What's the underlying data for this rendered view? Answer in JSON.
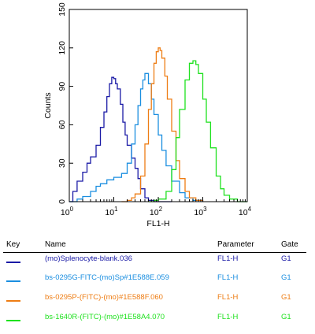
{
  "chart_data": {
    "type": "line",
    "xlabel": "FL1-H",
    "ylabel": "Counts",
    "xscale": "log",
    "xlim": [
      1,
      10000
    ],
    "ylim": [
      0,
      150
    ],
    "yticks": [
      "0",
      "30",
      "60",
      "90",
      "120",
      "150"
    ],
    "xticks": [
      {
        "base": "10",
        "exp": "0"
      },
      {
        "base": "10",
        "exp": "1"
      },
      {
        "base": "10",
        "exp": "2"
      },
      {
        "base": "10",
        "exp": "3"
      },
      {
        "base": "10",
        "exp": "4"
      }
    ],
    "series": [
      {
        "name": "(mo)Splenocyte-blank.036",
        "color": "#1a1aa6",
        "x": [
          1,
          1.2,
          1.5,
          2,
          2.5,
          3,
          4,
          5,
          6,
          7,
          8,
          9,
          10,
          11,
          12,
          14,
          16,
          18,
          20,
          25,
          30,
          35,
          40,
          50,
          60,
          80,
          100,
          150,
          200
        ],
        "y": [
          0,
          8,
          16,
          23,
          30,
          35,
          44,
          58,
          70,
          82,
          92,
          97,
          96,
          92,
          88,
          76,
          62,
          52,
          44,
          34,
          26,
          18,
          10,
          3,
          1,
          0,
          0,
          0,
          0
        ]
      },
      {
        "name": "bs-0295G-FITC-(mo)Sp#1E588E.059",
        "color": "#1a8ee0",
        "x": [
          1,
          1.5,
          2,
          3,
          4,
          5,
          7,
          10,
          15,
          20,
          25,
          30,
          35,
          40,
          45,
          50,
          60,
          70,
          80,
          100,
          120,
          150,
          200,
          300,
          400,
          600,
          1000
        ],
        "y": [
          0,
          2,
          4,
          8,
          12,
          14,
          17,
          19,
          22,
          30,
          45,
          60,
          75,
          88,
          95,
          100,
          92,
          80,
          68,
          52,
          40,
          28,
          16,
          7,
          3,
          1,
          0
        ]
      },
      {
        "name": "bs-0295P-(FITC)-(mo)#1E588F.060",
        "color": "#ee7d14",
        "x": [
          15,
          20,
          25,
          30,
          40,
          50,
          60,
          70,
          80,
          90,
          100,
          110,
          120,
          140,
          160,
          200,
          250,
          300,
          400,
          500,
          700,
          1000
        ],
        "y": [
          0,
          1,
          3,
          6,
          20,
          45,
          72,
          92,
          108,
          117,
          120,
          118,
          112,
          98,
          80,
          55,
          32,
          18,
          8,
          3,
          1,
          0
        ]
      },
      {
        "name": "bs-1640R-(FITC)-(mo)#1E58A4.070",
        "color": "#1ee11e",
        "x": [
          60,
          80,
          100,
          150,
          200,
          250,
          300,
          400,
          500,
          600,
          700,
          800,
          1000,
          1200,
          1500,
          2000,
          2500,
          3000,
          4000,
          6000,
          10000
        ],
        "y": [
          0,
          1,
          2,
          8,
          25,
          50,
          72,
          95,
          108,
          110,
          107,
          100,
          80,
          62,
          42,
          20,
          10,
          5,
          2,
          0,
          0
        ]
      }
    ]
  },
  "legend": {
    "headers": {
      "key": "Key",
      "name": "Name",
      "parameter": "Parameter",
      "gate": "Gate"
    },
    "rows": [
      {
        "name": "(mo)Splenocyte-blank.036",
        "parameter": "FL1-H",
        "gate": "G1",
        "color": "#1a1aa6"
      },
      {
        "name": "bs-0295G-FITC-(mo)Sp#1E588E.059",
        "parameter": "FL1-H",
        "gate": "G1",
        "color": "#1a8ee0"
      },
      {
        "name": "bs-0295P-(FITC)-(mo)#1E588F.060",
        "parameter": "FL1-H",
        "gate": "G1",
        "color": "#ee7d14"
      },
      {
        "name": "bs-1640R-(FITC)-(mo)#1E58A4.070",
        "parameter": "FL1-H",
        "gate": "G1",
        "color": "#1ee11e"
      }
    ]
  }
}
